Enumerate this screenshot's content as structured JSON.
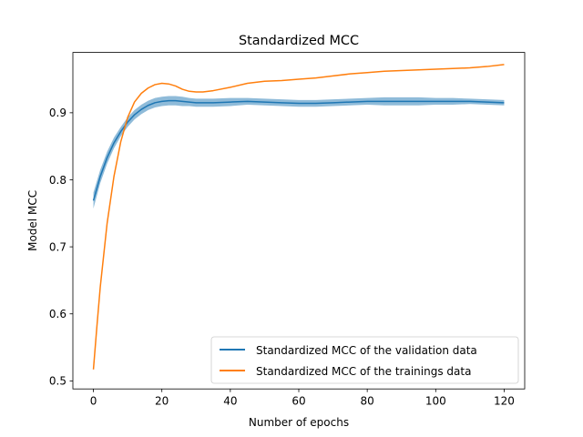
{
  "chart_data": {
    "type": "line",
    "title": "Standardized MCC",
    "xlabel": "Number of epochs",
    "ylabel": "Model MCC",
    "xlim": [
      -6,
      126
    ],
    "ylim": [
      0.488,
      0.99
    ],
    "xticks": [
      0,
      20,
      40,
      60,
      80,
      100,
      120
    ],
    "yticks": [
      0.5,
      0.6,
      0.7,
      0.8,
      0.9
    ],
    "ytick_labels": [
      "0.5",
      "0.6",
      "0.7",
      "0.8",
      "0.9"
    ],
    "grid": false,
    "legend_position": "lower-right",
    "series": [
      {
        "name": "Standardized MCC of the validation data",
        "color": "#1f77b4",
        "band_color": "#1f77b4",
        "x": [
          0,
          2,
          4,
          6,
          8,
          10,
          12,
          14,
          16,
          18,
          20,
          22,
          24,
          26,
          28,
          30,
          32,
          35,
          40,
          45,
          50,
          55,
          60,
          65,
          70,
          75,
          80,
          85,
          90,
          95,
          100,
          105,
          110,
          115,
          120
        ],
        "y": [
          0.769,
          0.805,
          0.833,
          0.855,
          0.872,
          0.886,
          0.897,
          0.905,
          0.911,
          0.915,
          0.917,
          0.918,
          0.918,
          0.917,
          0.916,
          0.915,
          0.915,
          0.915,
          0.916,
          0.917,
          0.916,
          0.915,
          0.914,
          0.914,
          0.915,
          0.916,
          0.917,
          0.917,
          0.917,
          0.917,
          0.917,
          0.917,
          0.917,
          0.916,
          0.915
        ],
        "upper": [
          0.781,
          0.815,
          0.842,
          0.863,
          0.879,
          0.893,
          0.904,
          0.912,
          0.918,
          0.922,
          0.924,
          0.925,
          0.925,
          0.924,
          0.922,
          0.921,
          0.921,
          0.921,
          0.922,
          0.922,
          0.921,
          0.92,
          0.919,
          0.919,
          0.92,
          0.921,
          0.922,
          0.923,
          0.923,
          0.923,
          0.922,
          0.922,
          0.921,
          0.92,
          0.919
        ],
        "lower": [
          0.757,
          0.795,
          0.824,
          0.847,
          0.865,
          0.879,
          0.89,
          0.898,
          0.904,
          0.908,
          0.91,
          0.911,
          0.911,
          0.91,
          0.91,
          0.909,
          0.909,
          0.909,
          0.91,
          0.912,
          0.911,
          0.91,
          0.909,
          0.909,
          0.91,
          0.911,
          0.912,
          0.911,
          0.911,
          0.911,
          0.912,
          0.912,
          0.913,
          0.912,
          0.911
        ]
      },
      {
        "name": "Standardized MCC of the trainings data",
        "color": "#ff7f0e",
        "x": [
          0,
          1,
          2,
          4,
          6,
          8,
          10,
          12,
          14,
          16,
          18,
          20,
          22,
          24,
          26,
          28,
          30,
          32,
          35,
          40,
          45,
          50,
          55,
          60,
          65,
          70,
          75,
          80,
          85,
          90,
          95,
          100,
          105,
          110,
          115,
          120
        ],
        "y": [
          0.517,
          0.58,
          0.64,
          0.735,
          0.805,
          0.857,
          0.893,
          0.916,
          0.929,
          0.937,
          0.942,
          0.944,
          0.943,
          0.94,
          0.935,
          0.932,
          0.931,
          0.931,
          0.933,
          0.938,
          0.944,
          0.947,
          0.948,
          0.95,
          0.952,
          0.955,
          0.958,
          0.96,
          0.962,
          0.963,
          0.964,
          0.965,
          0.966,
          0.967,
          0.969,
          0.972
        ]
      }
    ]
  }
}
